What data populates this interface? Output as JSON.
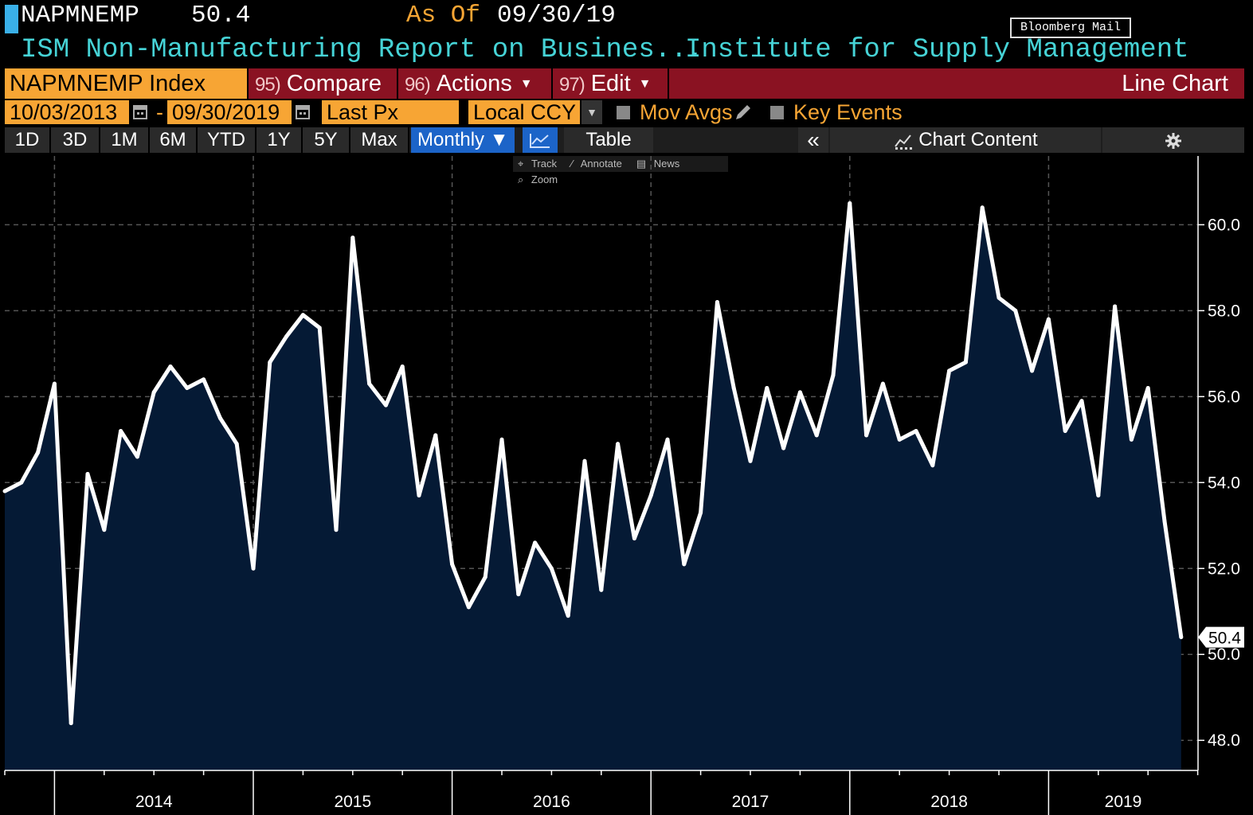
{
  "header": {
    "ticker": "NAPMNEMP",
    "last_value": "50.4",
    "as_of_label": "As Of",
    "as_of_date": "09/30/19",
    "mail_label": "Bloomberg Mail",
    "description": "ISM Non-Manufacturing Report on Busines...",
    "source": "Institute for Supply Management"
  },
  "menu": {
    "security": "NAPMNEMP Index",
    "compare_num": "95)",
    "compare": "Compare",
    "actions_num": "96)",
    "actions": "Actions",
    "edit_num": "97)",
    "edit": "Edit",
    "chart_type": "Line Chart"
  },
  "controls": {
    "start_date": "10/03/2013",
    "dash": "-",
    "end_date": "09/30/2019",
    "field": "Last Px",
    "currency": "Local CCY",
    "mov_avgs": "Mov Avgs",
    "key_events": "Key Events"
  },
  "toolbar": {
    "ranges": [
      "1D",
      "3D",
      "1M",
      "6M",
      "YTD",
      "1Y",
      "5Y",
      "Max"
    ],
    "period": "Monthly ▼",
    "table": "Table",
    "collapse": "«",
    "chart_content": "Chart Content"
  },
  "subtools": {
    "track": "Track",
    "annotate": "Annotate",
    "news": "News",
    "zoom": "Zoom"
  },
  "icons": [
    "calendar-icon",
    "pencil-icon",
    "line-chart-icon",
    "chart-content-icon",
    "gear-icon"
  ],
  "colors": {
    "accent_orange": "#f7a534",
    "cyan_text": "#46d3d6",
    "menu_red": "#8a1222",
    "selected_blue": "#1c64c8",
    "line": "#ffffff",
    "area_fill": "#051a35"
  },
  "chart_data": {
    "type": "area",
    "series": [
      {
        "values": [
          53.8,
          54.0,
          54.7,
          56.3,
          48.4,
          54.2,
          52.9,
          55.2,
          54.6,
          56.1,
          56.7,
          56.2,
          56.4,
          55.5,
          54.9,
          52.0,
          56.8,
          57.4,
          57.9,
          57.6,
          52.9,
          59.7,
          56.3,
          55.8,
          56.7,
          53.7,
          55.1,
          52.1,
          51.1,
          51.8,
          55.0,
          51.4,
          52.6,
          52.0,
          50.9,
          54.5,
          51.5,
          54.9,
          52.7,
          53.7,
          55.0,
          52.1,
          53.3,
          58.2,
          56.2,
          54.5,
          56.2,
          54.8,
          56.1,
          55.1,
          56.5,
          60.5,
          55.1,
          56.3,
          55.0,
          55.2,
          54.4,
          56.6,
          56.8,
          60.4,
          58.3,
          58.0,
          56.6,
          57.8,
          55.2,
          55.9,
          53.7,
          58.1,
          55.0,
          56.2,
          53.1,
          50.4
        ]
      }
    ],
    "x_range": [
      "2013-10",
      "2019-09"
    ],
    "year_labels": [
      "2014",
      "2015",
      "2016",
      "2017",
      "2018",
      "2019"
    ],
    "y_ticks": [
      "48.0",
      "50.0",
      "52.0",
      "54.0",
      "56.0",
      "58.0",
      "60.0"
    ],
    "ylim": [
      47.3,
      61.6
    ],
    "last_label": "50.4",
    "grid": true,
    "y_axis_side": "right"
  }
}
